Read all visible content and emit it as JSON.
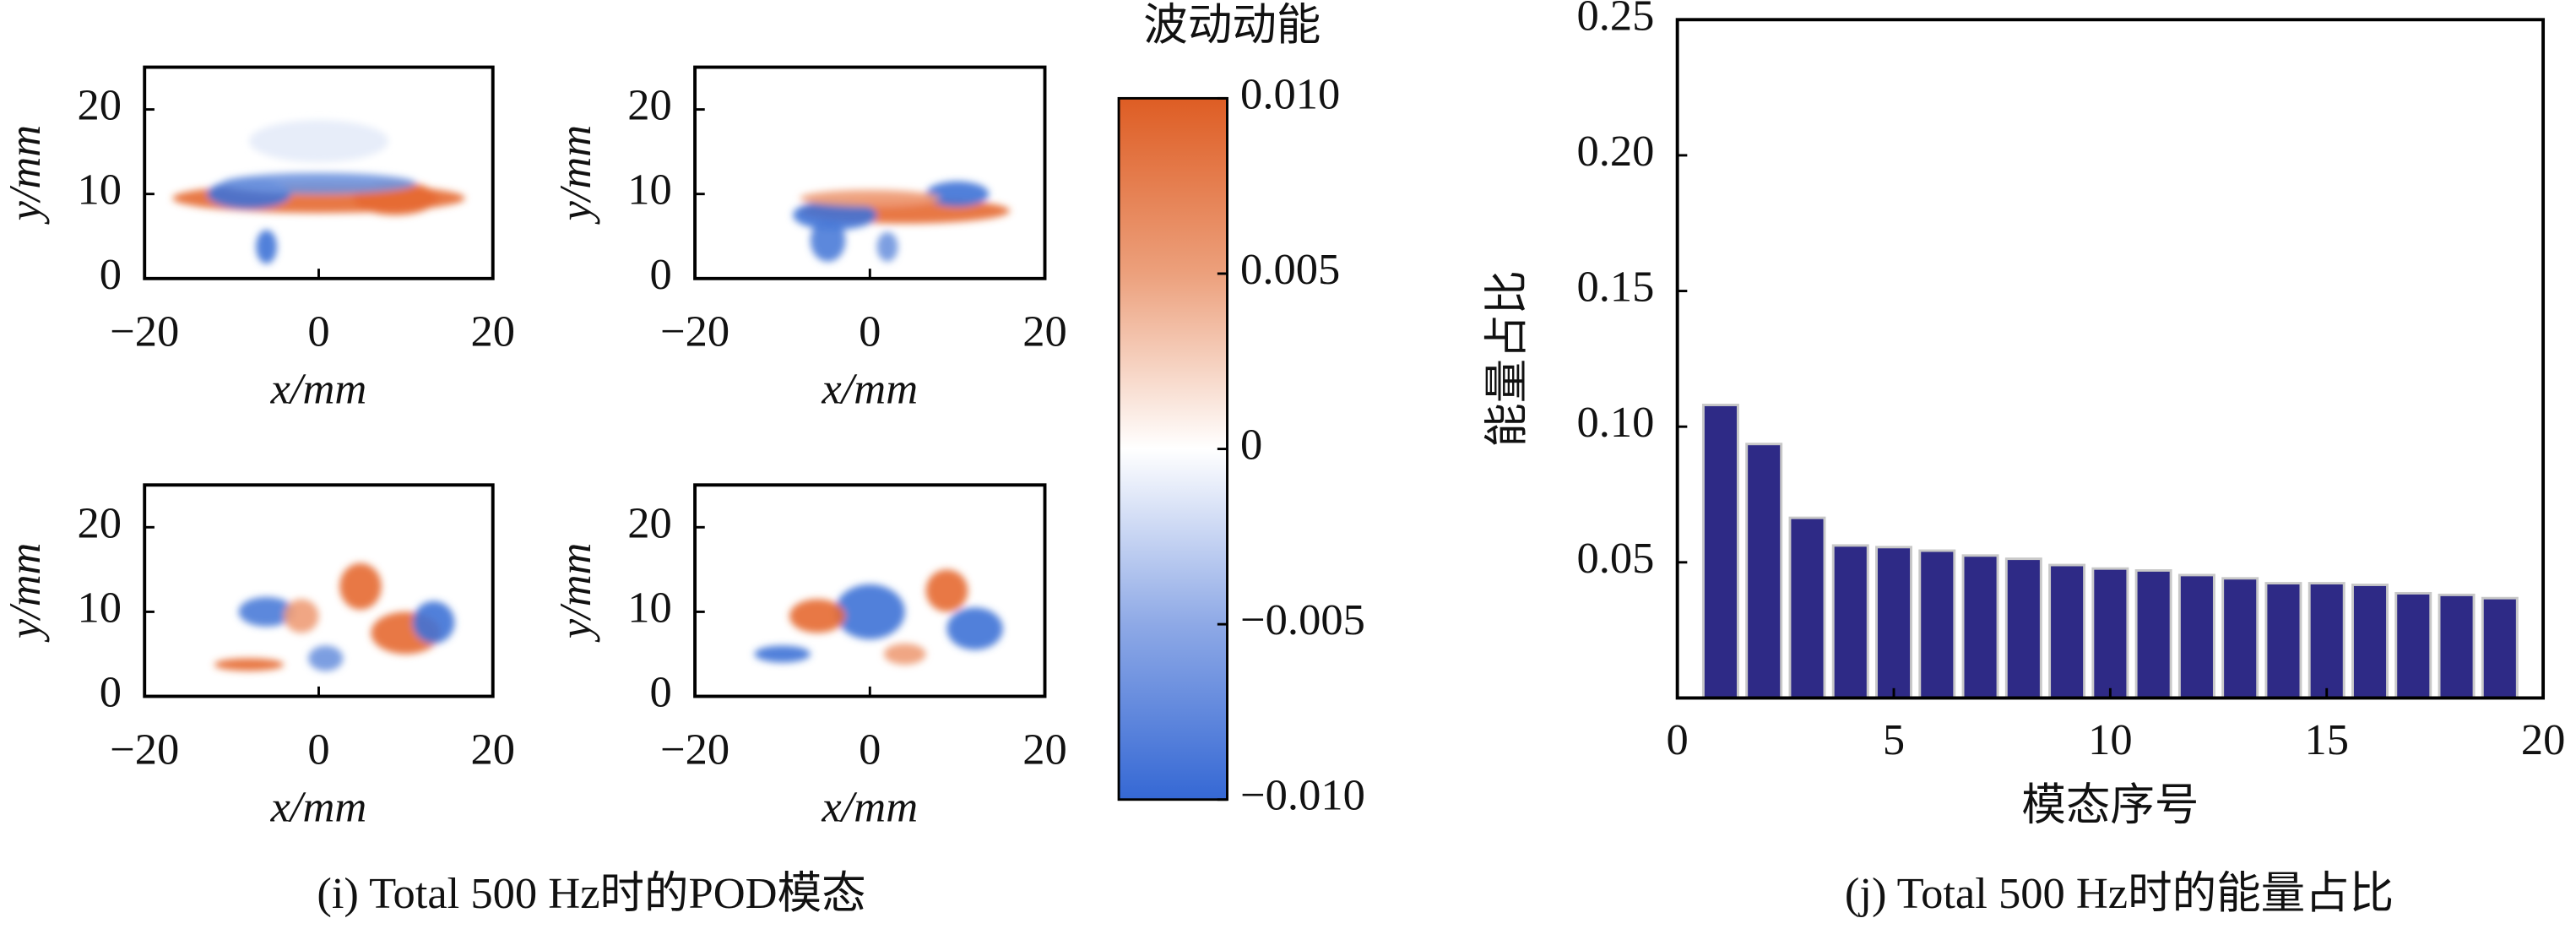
{
  "chart_data": [
    {
      "type": "heatmap-grid",
      "caption": "(i) Total 500 Hz时的POD模态",
      "colorbar": {
        "title": "波动动能",
        "lim": [
          -0.01,
          0.01
        ],
        "ticks": [
          {
            "value": -0.01,
            "label": "−0.010"
          },
          {
            "value": -0.005,
            "label": "−0.005"
          },
          0,
          0.005,
          {
            "value": 0.01,
            "label": "0.010"
          }
        ]
      },
      "panels": [
        {
          "xlabel": "x/mm",
          "ylabel": "y/mm",
          "xlim": [
            -20,
            20
          ],
          "ylim": [
            0,
            25
          ],
          "xticks": [
            {
              "value": -20,
              "label": "−20"
            },
            0,
            20
          ],
          "yticks": [
            0,
            10,
            20
          ]
        },
        {
          "xlabel": "x/mm",
          "ylabel": "y/mm",
          "xlim": [
            -20,
            20
          ],
          "ylim": [
            0,
            25
          ],
          "xticks": [
            {
              "value": -20,
              "label": "−20"
            },
            0,
            20
          ],
          "yticks": [
            0,
            10,
            20
          ]
        },
        {
          "xlabel": "x/mm",
          "ylabel": "y/mm",
          "xlim": [
            -20,
            20
          ],
          "ylim": [
            0,
            25
          ],
          "xticks": [
            {
              "value": -20,
              "label": "−20"
            },
            0,
            20
          ],
          "yticks": [
            0,
            10,
            20
          ]
        },
        {
          "xlabel": "x/mm",
          "ylabel": "y/mm",
          "xlim": [
            -20,
            20
          ],
          "ylim": [
            0,
            25
          ],
          "xticks": [
            {
              "value": -20,
              "label": "−20"
            },
            0,
            20
          ],
          "yticks": [
            0,
            10,
            20
          ]
        }
      ]
    },
    {
      "type": "bar",
      "caption": "(j) Total 500 Hz时的能量占比",
      "xlabel": "模态序号",
      "ylabel": "能量占比",
      "x": [
        1,
        2,
        3,
        4,
        5,
        6,
        7,
        8,
        9,
        10,
        11,
        12,
        13,
        14,
        15,
        16,
        17,
        18,
        19
      ],
      "values": [
        0.108,
        0.0936,
        0.0664,
        0.0562,
        0.0556,
        0.0543,
        0.0525,
        0.0513,
        0.049,
        0.0477,
        0.047,
        0.0453,
        0.0441,
        0.0423,
        0.0423,
        0.0417,
        0.0386,
        0.038,
        0.0368
      ],
      "color": "#2e2a86",
      "xlim": [
        0,
        20
      ],
      "ylim": [
        0,
        0.25
      ],
      "xticks": [
        0,
        5,
        10,
        15,
        20
      ],
      "yticks": [
        0.05,
        {
          "value": 0.1,
          "label": "0.10"
        },
        0.15,
        {
          "value": 0.2,
          "label": "0.20"
        },
        0.25
      ]
    }
  ]
}
